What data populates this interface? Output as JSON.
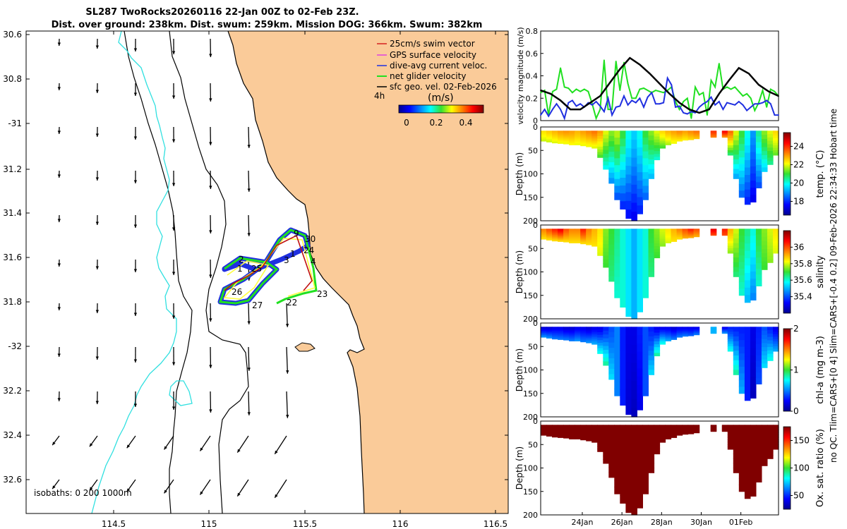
{
  "header": {
    "title_line1": "SL287 TwoRocks20260116 22-Jan 00Z to 02-Feb 23Z.",
    "title_line2": "Dist. over ground: 238km. Dist. swum: 259km. Mission DOG: 366km. Swum: 382km"
  },
  "map": {
    "lat_ticks": [
      "30.6",
      "30.8",
      "-31",
      "31.2",
      "31.4",
      "31.6",
      "31.8",
      "-32",
      "32.2",
      "32.4",
      "32.6"
    ],
    "lon_ticks": [
      "114.5",
      "115",
      "115.5",
      "116",
      "116.5"
    ],
    "legend_items": [
      {
        "label": "25cm/s swim vector",
        "color": "#d42020"
      },
      {
        "label": "GPS surface velocity",
        "color": "#e040e0"
      },
      {
        "label": "dive-avg current veloc.",
        "color": "#2030e0"
      },
      {
        "label": "net glider velocity",
        "color": "#20e020"
      },
      {
        "label": "sfc geo. vel. 02-Feb-2026",
        "color": "#000000"
      }
    ],
    "vector_scale_label": "4h",
    "colorbar_title": "(m/s)",
    "colorbar_ticks": [
      "0",
      "0.2",
      "0.4"
    ],
    "isobath_label": "isobaths: 0   200  1000m",
    "track_labels": [
      "9",
      "30",
      "24",
      "1",
      "4",
      "2",
      "3",
      "1",
      "25",
      "26",
      "23",
      "27",
      "22"
    ],
    "colors": {
      "land": "#facb99",
      "coast200": "#000000",
      "coast1000": "#000000",
      "cyan": "#30e0e0"
    }
  },
  "chart_data": [
    {
      "type": "line",
      "title": "",
      "ylabel": "velocity magnitude (m/s)",
      "ylim": [
        0,
        0.8
      ],
      "yticks": [
        "0",
        "0.2",
        "0.4",
        "0.6",
        "0.8"
      ],
      "xlim_days": [
        0,
        12
      ],
      "series": [
        {
          "name": "net glider velocity",
          "color": "#20e020",
          "x": [
            0,
            0.2,
            0.4,
            0.6,
            0.8,
            1.0,
            1.2,
            1.4,
            1.6,
            1.8,
            2.0,
            2.2,
            2.4,
            2.6,
            2.8,
            3.0,
            3.2,
            3.4,
            3.6,
            3.8,
            4.0,
            4.2,
            4.4,
            4.6,
            4.8,
            5.0,
            5.2,
            5.4,
            5.6,
            5.8,
            6.0,
            6.2,
            6.4,
            6.6,
            6.8,
            7.0,
            7.2,
            7.4,
            7.6,
            7.8,
            8.0,
            8.2,
            8.4,
            8.6,
            8.8,
            9.0,
            9.2,
            9.4,
            9.6,
            9.8,
            10.0,
            10.2,
            10.4,
            10.6,
            10.8,
            11.0,
            11.2,
            11.4,
            11.6,
            11.8,
            12.0
          ],
          "y": [
            0.25,
            0.27,
            0.05,
            0.26,
            0.28,
            0.47,
            0.3,
            0.29,
            0.25,
            0.28,
            0.26,
            0.28,
            0.26,
            0.15,
            0.02,
            0.1,
            0.54,
            0.1,
            0.1,
            0.53,
            0.27,
            0.52,
            0.33,
            0.2,
            0.2,
            0.28,
            0.29,
            0.27,
            0.25,
            0.27,
            0.26,
            0.25,
            0.27,
            0.3,
            0.17,
            0.1,
            0.17,
            0.2,
            0.02,
            0.3,
            0.23,
            0.25,
            0.05,
            0.36,
            0.3,
            0.51,
            0.28,
            0.3,
            0.28,
            0.3,
            0.26,
            0.22,
            0.24,
            0.2,
            0.09,
            0.16,
            0.27,
            0.12,
            0.28,
            0.26,
            0.22
          ]
        },
        {
          "name": "dive-avg current veloc.",
          "color": "#2030e0",
          "x": [
            0,
            0.2,
            0.4,
            0.6,
            0.8,
            1.0,
            1.2,
            1.4,
            1.6,
            1.8,
            2.0,
            2.2,
            2.4,
            2.6,
            2.8,
            3.0,
            3.2,
            3.4,
            3.6,
            3.8,
            4.0,
            4.2,
            4.4,
            4.6,
            4.8,
            5.0,
            5.2,
            5.4,
            5.6,
            5.8,
            6.0,
            6.2,
            6.4,
            6.6,
            6.8,
            7.0,
            7.2,
            7.4,
            7.6,
            7.8,
            8.0,
            8.2,
            8.4,
            8.6,
            8.8,
            9.0,
            9.2,
            9.4,
            9.6,
            9.8,
            10.0,
            10.2,
            10.4,
            10.6,
            10.8,
            11.0,
            11.2,
            11.4,
            11.6,
            11.8,
            12.0
          ],
          "y": [
            0.05,
            0.1,
            0.04,
            0.1,
            0.15,
            0.1,
            0.02,
            0.16,
            0.18,
            0.13,
            0.15,
            0.12,
            0.16,
            0.14,
            0.17,
            0.13,
            0.08,
            0.2,
            0.05,
            0.12,
            0.13,
            0.22,
            0.14,
            0.18,
            0.16,
            0.2,
            0.12,
            0.21,
            0.25,
            0.15,
            0.15,
            0.16,
            0.38,
            0.32,
            0.12,
            0.13,
            0.07,
            0.06,
            0.08,
            0.07,
            0.12,
            0.15,
            0.17,
            0.21,
            0.14,
            0.17,
            0.1,
            0.16,
            0.15,
            0.14,
            0.17,
            0.14,
            0.09,
            0.12,
            0.15,
            0.15,
            0.16,
            0.18,
            0.15,
            0.05,
            0.05
          ]
        },
        {
          "name": "sfc geo. vel. 02-Feb-2026",
          "color": "#000000",
          "x": [
            0,
            0.5,
            1.0,
            1.5,
            2.0,
            2.5,
            3.0,
            3.5,
            4.0,
            4.5,
            5.0,
            5.5,
            6.0,
            6.5,
            7.0,
            7.5,
            8.0,
            8.5,
            9.0,
            9.5,
            10.0,
            10.5,
            11.0,
            11.5,
            12.0
          ],
          "y": [
            0.27,
            0.24,
            0.18,
            0.1,
            0.1,
            0.16,
            0.22,
            0.34,
            0.46,
            0.56,
            0.5,
            0.42,
            0.33,
            0.24,
            0.16,
            0.1,
            0.07,
            0.1,
            0.24,
            0.36,
            0.47,
            0.42,
            0.32,
            0.26,
            0.22
          ]
        }
      ]
    },
    {
      "type": "heatmap",
      "ylabel": "Depth (m)",
      "clabel": "temp. (°C)",
      "ylim": [
        200,
        0
      ],
      "yticks": [
        "0",
        "50",
        "100",
        "150",
        "200"
      ],
      "clim": [
        16.5,
        25.5
      ],
      "cticks": [
        "18",
        "20",
        "22",
        "24"
      ],
      "dive_max_depth": [
        30,
        32,
        34,
        35,
        36,
        38,
        38,
        40,
        42,
        45,
        65,
        90,
        120,
        155,
        175,
        195,
        200,
        185,
        155,
        110,
        70,
        45,
        38,
        35,
        30,
        28,
        27,
        25,
        -1,
        -1,
        22,
        -1,
        22,
        60,
        110,
        150,
        165,
        160,
        130,
        95,
        80,
        60
      ],
      "surface_value": [
        22.4,
        22.6,
        22.8,
        23.0,
        23.1,
        23.0,
        22.8,
        23.0,
        23.2,
        23.4,
        23.0,
        22.0,
        21.5,
        21.8,
        21.0,
        20.0,
        19.5,
        20.0,
        21.0,
        21.5,
        22.0,
        22.5,
        22.8,
        23.0,
        23.2,
        23.0,
        23.2,
        23.4,
        0,
        0,
        24.0,
        0,
        24.5,
        23.5,
        22.0,
        21.0,
        20.0,
        19.0,
        20.5,
        21.5,
        22.0,
        22.5
      ],
      "deep_value": [
        21.8,
        21.8,
        21.9,
        22.0,
        22.0,
        22.1,
        22.0,
        22.0,
        22.0,
        21.9,
        21.0,
        19.8,
        18.8,
        18.2,
        17.8,
        17.6,
        17.4,
        17.8,
        18.4,
        19.2,
        20.0,
        21.0,
        21.6,
        22.0,
        22.2,
        22.2,
        22.4,
        22.6,
        0,
        0,
        23.2,
        0,
        23.0,
        20.5,
        19.0,
        18.4,
        17.8,
        17.4,
        18.2,
        19.4,
        20.4,
        21.2
      ]
    },
    {
      "type": "heatmap",
      "ylabel": "Depth (m)",
      "clabel": "salinity",
      "ylim": [
        200,
        0
      ],
      "yticks": [
        "0",
        "50",
        "100",
        "150",
        "200"
      ],
      "clim": [
        35.2,
        36.2
      ],
      "cticks": [
        "35.4",
        "35.6",
        "35.8",
        "36"
      ],
      "surface_value": [
        35.95,
        36.0,
        36.05,
        36.1,
        36.0,
        35.95,
        35.95,
        36.05,
        35.95,
        35.9,
        35.85,
        35.75,
        35.7,
        35.65,
        35.6,
        35.55,
        35.5,
        35.55,
        35.6,
        35.7,
        35.75,
        35.8,
        35.85,
        35.9,
        35.95,
        36.0,
        36.05,
        36.0,
        0,
        0,
        36.1,
        0,
        36.05,
        35.9,
        35.8,
        35.7,
        35.65,
        35.6,
        35.7,
        35.75,
        35.8,
        35.85
      ],
      "deep_value": [
        35.85,
        35.85,
        35.85,
        35.85,
        35.85,
        35.85,
        35.85,
        35.85,
        35.85,
        35.85,
        35.8,
        35.7,
        35.65,
        35.6,
        35.6,
        35.55,
        35.5,
        35.55,
        35.6,
        35.65,
        35.7,
        35.75,
        35.8,
        35.85,
        35.85,
        35.9,
        35.9,
        35.9,
        0,
        0,
        36.0,
        0,
        36.0,
        35.75,
        35.65,
        35.6,
        35.5,
        35.45,
        35.6,
        35.7,
        35.75,
        35.8
      ]
    },
    {
      "type": "heatmap",
      "ylabel": "Depth (m)",
      "clabel": "chl-a (mg m-3)",
      "ylim": [
        200,
        0
      ],
      "yticks": [
        "0",
        "50",
        "100",
        "150",
        "200"
      ],
      "clim": [
        0,
        2
      ],
      "cticks": [
        "0",
        "1",
        "2"
      ],
      "surface_value": [
        0.15,
        0.15,
        0.2,
        0.2,
        0.15,
        0.15,
        0.2,
        0.2,
        0.15,
        0.2,
        0.2,
        0.3,
        0.4,
        0.5,
        0.3,
        0.2,
        0.2,
        0.3,
        0.4,
        0.3,
        0.2,
        0.2,
        0.2,
        0.15,
        0.2,
        0.2,
        0.2,
        0.2,
        0,
        0,
        0.6,
        0,
        0.2,
        0.3,
        0.3,
        0.3,
        0.3,
        0.2,
        0.3,
        0.4,
        0.3,
        0.2
      ],
      "deep_value": [
        0.55,
        0.55,
        0.5,
        0.5,
        0.5,
        0.5,
        0.55,
        0.5,
        0.55,
        0.6,
        0.8,
        0.9,
        0.7,
        0.5,
        0.3,
        0.15,
        0.1,
        0.2,
        0.4,
        0.7,
        0.9,
        0.8,
        0.6,
        0.5,
        0.5,
        0.5,
        0.45,
        0.5,
        0,
        0,
        0.6,
        0,
        0.55,
        0.8,
        0.9,
        0.6,
        0.3,
        0.1,
        0.4,
        0.7,
        0.8,
        0.6
      ]
    },
    {
      "type": "heatmap",
      "ylabel": "Depth (m)",
      "clabel": "Ox. sat. ratio (%)",
      "ylim": [
        200,
        0
      ],
      "yticks": [
        "0",
        "50",
        "100",
        "150",
        "200"
      ],
      "clim": [
        25,
        175
      ],
      "cticks": [
        "50",
        "100",
        "150"
      ],
      "xticks": [
        "24Jan",
        "26Jan",
        "28Jan",
        "30Jan",
        "01Feb"
      ],
      "surface_value": [
        175,
        175,
        175,
        175,
        175,
        175,
        175,
        175,
        175,
        175,
        175,
        175,
        175,
        175,
        175,
        175,
        175,
        175,
        175,
        175,
        175,
        175,
        175,
        175,
        175,
        175,
        175,
        175,
        0,
        0,
        175,
        0,
        175,
        175,
        175,
        175,
        175,
        175,
        175,
        175,
        175,
        175
      ],
      "deep_value": [
        175,
        175,
        175,
        175,
        175,
        175,
        175,
        175,
        175,
        175,
        175,
        175,
        175,
        175,
        175,
        175,
        175,
        175,
        175,
        175,
        175,
        175,
        175,
        175,
        175,
        175,
        175,
        175,
        0,
        0,
        175,
        0,
        175,
        175,
        175,
        175,
        175,
        175,
        175,
        175,
        175,
        175
      ]
    }
  ],
  "side_note": "no QC. Tlim=CARS+[0 4] Slim=CARS+[-0.4 0.2] 09-Feb-2026 22:34:33 Hobart time"
}
